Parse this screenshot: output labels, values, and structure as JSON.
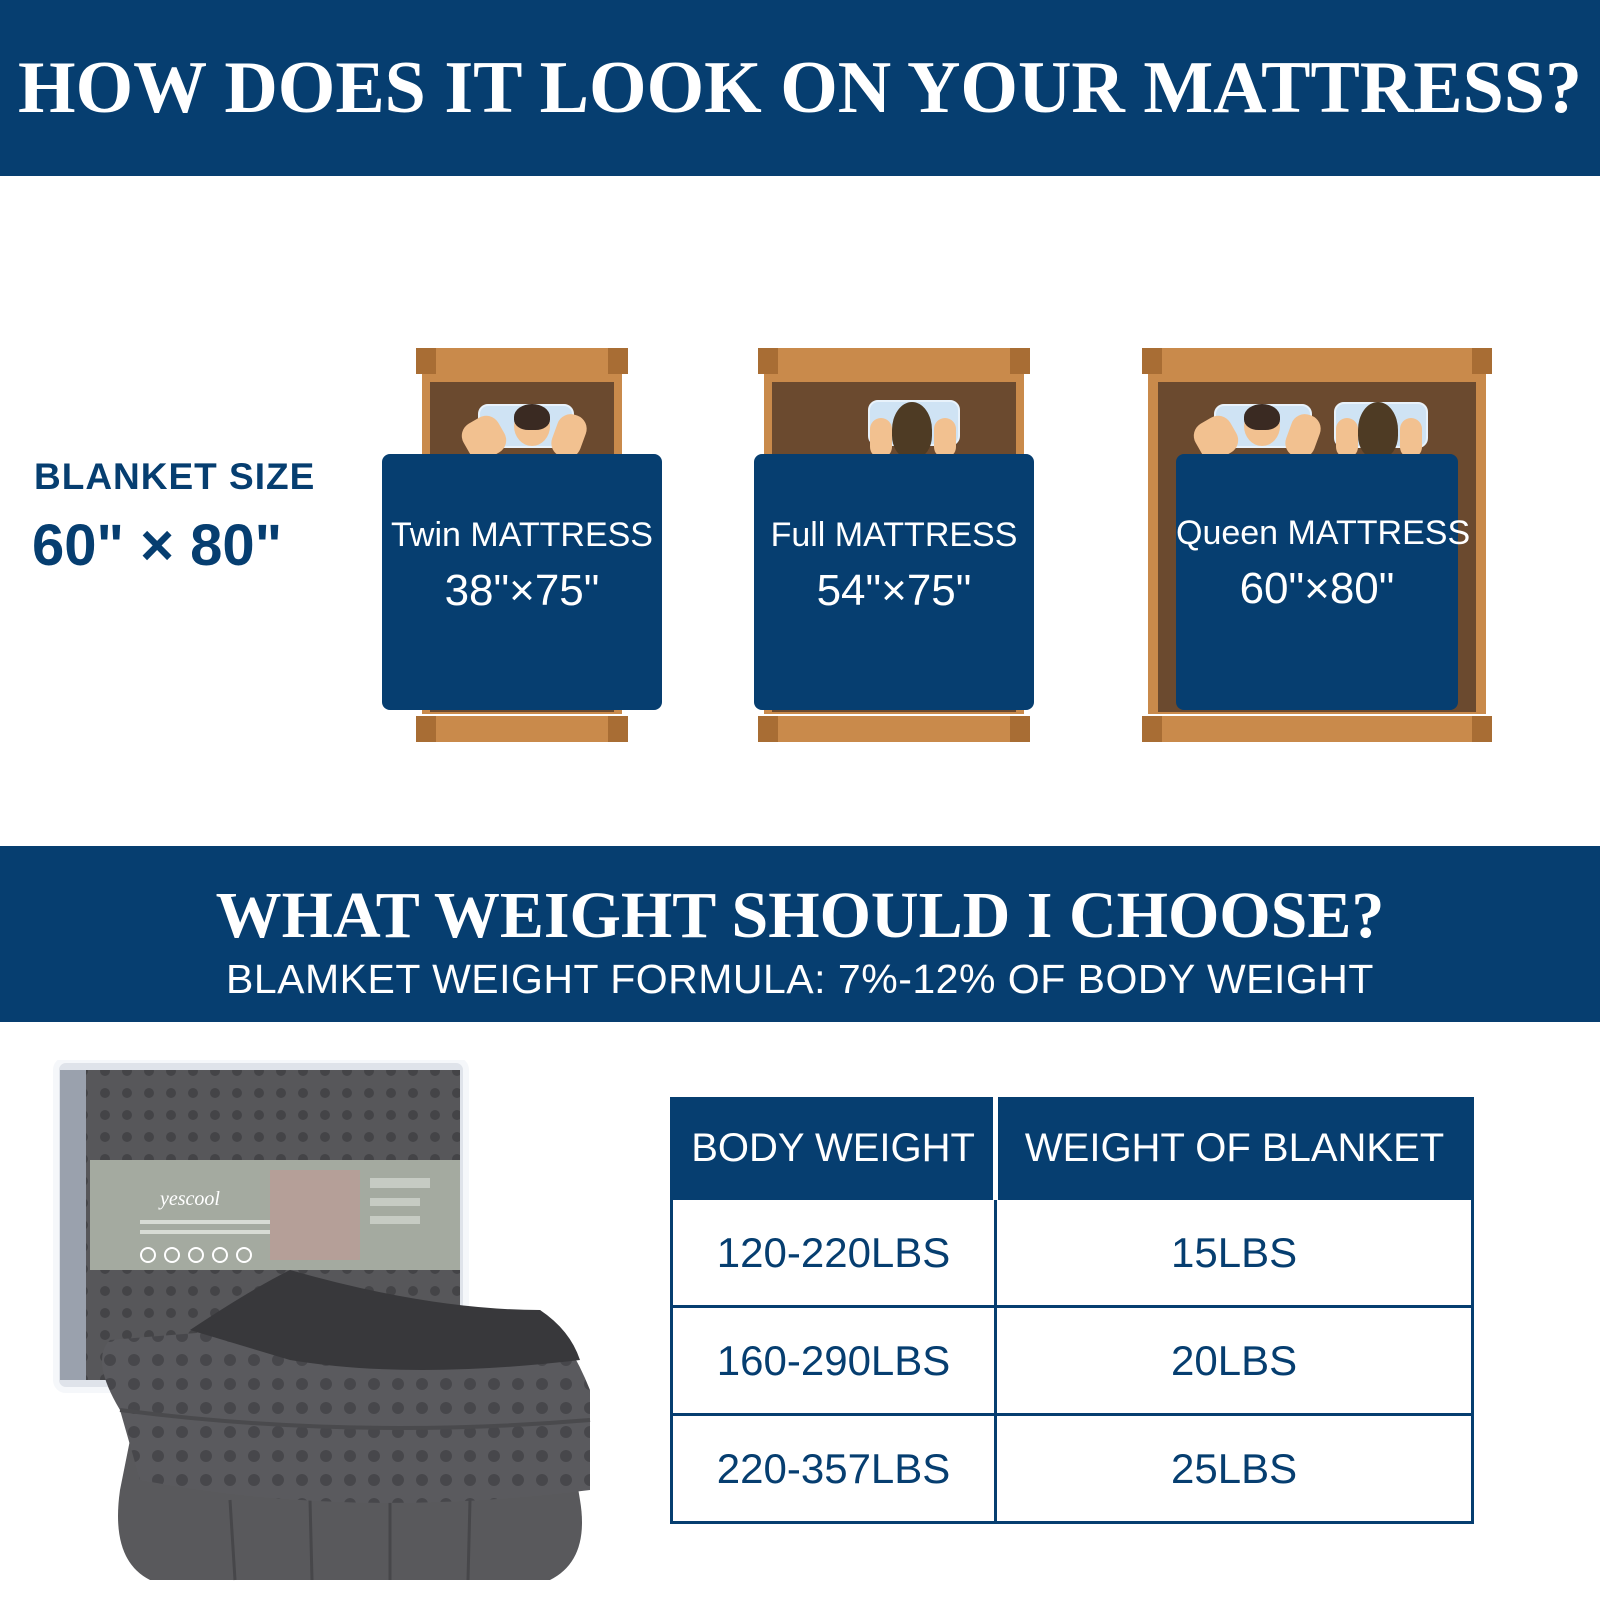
{
  "header": {
    "title": "HOW DOES IT LOOK ON YOUR MATTRESS?"
  },
  "blanket_size": {
    "label": "BLANKET SIZE",
    "value": "60\" × 80\""
  },
  "mattresses": [
    {
      "name": "Twin MATTRESS",
      "dims": "38\"×75\""
    },
    {
      "name": "Full MATTRESS",
      "dims": "54\"×75\""
    },
    {
      "name": "Queen MATTRESS",
      "dims": "60\"×80\""
    }
  ],
  "weight_section": {
    "title": "WHAT WEIGHT SHOULD I CHOOSE?",
    "formula": "BLAMKET WEIGHT FORMULA: 7%-12% OF BODY WEIGHT"
  },
  "product": {
    "brand": "yescool"
  },
  "weight_table": {
    "headers": [
      "BODY WEIGHT",
      "WEIGHT OF BLANKET"
    ],
    "rows": [
      [
        "120-220LBS",
        "15LBS"
      ],
      [
        "160-290LBS",
        "20LBS"
      ],
      [
        "220-357LBS",
        "25LBS"
      ]
    ]
  },
  "colors": {
    "navy": "#063e70",
    "wood": "#c98a4b",
    "wood_dark": "#6b4a2f",
    "blanket_gray": "#4d4d50"
  }
}
